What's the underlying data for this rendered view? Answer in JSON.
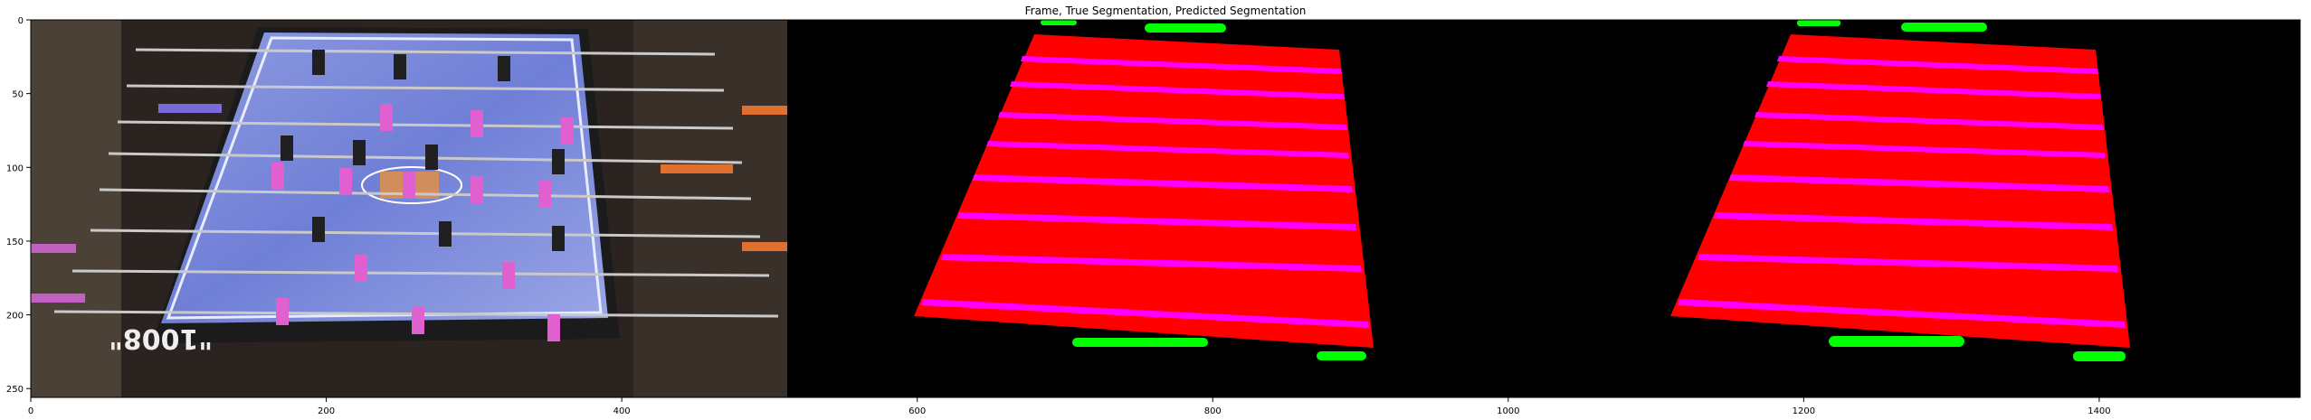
{
  "chart_data": {
    "type": "image",
    "title": "Frame, True Segmentation, Predicted Segmentation",
    "xlim": [
      0,
      1536
    ],
    "ylim": [
      256,
      0
    ],
    "x_ticks": [
      0,
      200,
      400,
      600,
      800,
      1000,
      1200,
      1400
    ],
    "y_ticks": [
      0,
      50,
      100,
      150,
      200,
      250
    ],
    "panels": [
      "Frame",
      "True Segmentation",
      "Predicted Segmentation"
    ],
    "panel_width": 512,
    "class_colors": {
      "background": "#000000",
      "table": "#ff0000",
      "rods": "#ff00ff",
      "goals": "#00ff00"
    },
    "frame_text": "\"1008\""
  }
}
